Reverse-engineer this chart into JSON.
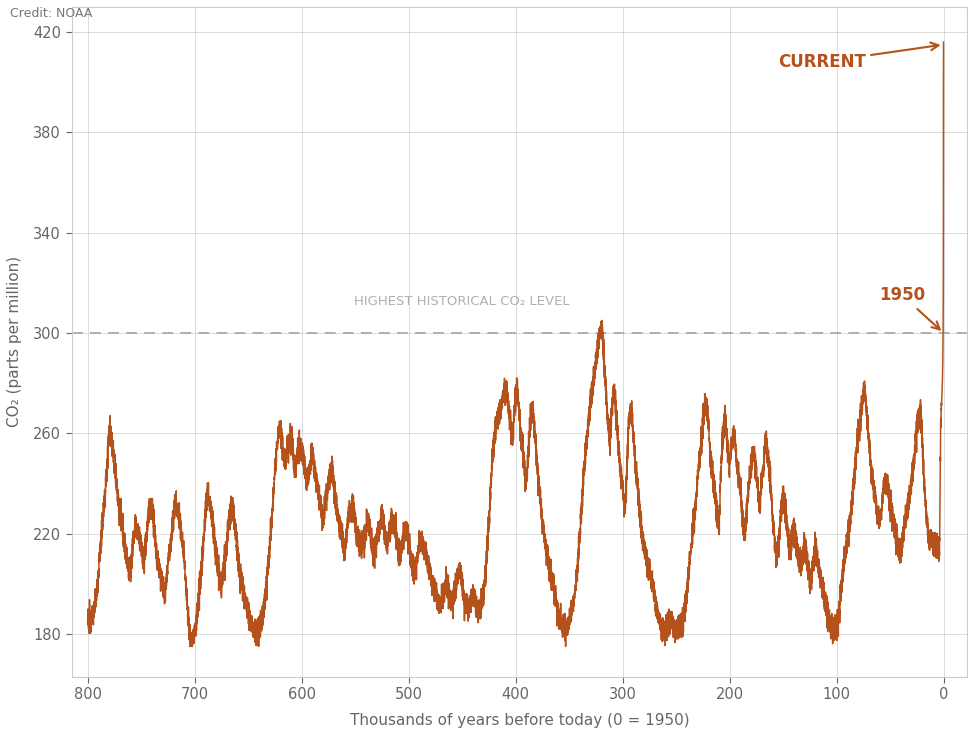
{
  "credit": "Credit: NOAA",
  "xlabel": "Thousands of years before today (0 = 1950)",
  "ylabel": "CO₂ (parts per million)",
  "line_color": "#b5521b",
  "background_color": "#ffffff",
  "grid_color": "#cccccc",
  "dashed_line_y": 300,
  "dashed_line_color": "#aaaaaa",
  "dashed_label": "HIGHEST HISTORICAL CO₂ LEVEL",
  "annotation_1950": "1950",
  "annotation_current": "CURRENT",
  "annotation_color": "#b5521b",
  "ylim": [
    163,
    430
  ],
  "xlim": [
    815,
    -22
  ],
  "yticks": [
    180,
    220,
    260,
    300,
    340,
    380,
    420
  ],
  "xticks": [
    800,
    700,
    600,
    500,
    400,
    300,
    200,
    100,
    0
  ],
  "figsize": [
    9.74,
    7.35
  ],
  "dpi": 100
}
